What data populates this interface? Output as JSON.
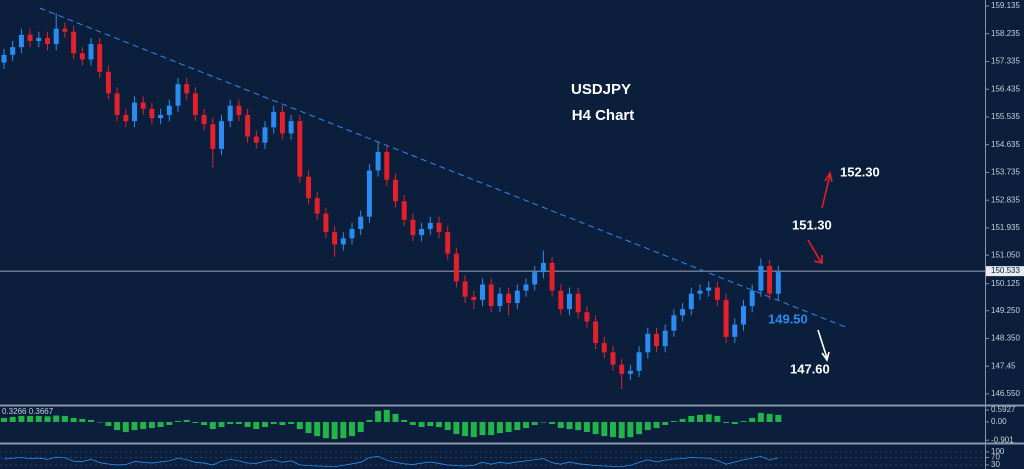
{
  "chart_data": {
    "type": "candlestick",
    "title": "USDJPY",
    "subtitle": "H4 Chart",
    "up_color": "#2a8cf0",
    "down_color": "#e3202c",
    "xlim": [
      -0.46,
      112.76
    ],
    "ylim": [
      146.19,
      159.33
    ],
    "yticks": [
      159.135,
      158.235,
      157.335,
      156.435,
      155.535,
      154.635,
      153.735,
      152.835,
      151.935,
      {
        "value": 151.05,
        "label": "151.050"
      },
      150.125,
      {
        "value": 149.25,
        "label": "149.250"
      },
      {
        "value": 148.35,
        "label": "148.350"
      },
      147.45,
      {
        "value": 146.55,
        "label": "146.550"
      }
    ],
    "last_price": 150.533,
    "open": [
      157.3,
      157.55,
      157.8,
      158.2,
      158.0,
      158.1,
      157.9,
      158.4,
      158.3,
      157.6,
      157.4,
      157.9,
      157.0,
      156.3,
      155.6,
      155.4,
      156.0,
      155.8,
      155.5,
      155.6,
      155.9,
      156.6,
      156.3,
      155.6,
      155.3,
      154.5,
      155.4,
      155.9,
      155.6,
      154.9,
      154.7,
      155.2,
      155.7,
      155.0,
      155.4,
      153.6,
      152.9,
      152.4,
      151.8,
      151.4,
      151.6,
      151.9,
      152.3,
      153.8,
      154.4,
      153.5,
      152.8,
      152.2,
      151.7,
      151.9,
      152.1,
      151.8,
      151.1,
      150.2,
      149.7,
      149.6,
      150.1,
      149.4,
      149.8,
      149.5,
      149.9,
      150.1,
      150.5,
      150.8,
      149.9,
      149.3,
      149.8,
      149.2,
      148.9,
      148.2,
      147.9,
      147.5,
      147.2,
      147.3,
      147.9,
      148.5,
      148.1,
      148.6,
      149.1,
      149.3,
      149.8,
      149.9,
      150.0,
      149.6,
      148.4,
      148.8,
      149.4,
      149.9,
      150.7,
      149.8
    ],
    "high": [
      157.75,
      158.0,
      158.4,
      158.4,
      158.3,
      158.3,
      158.9,
      158.6,
      158.5,
      157.8,
      158.1,
      158.1,
      157.2,
      156.5,
      155.8,
      156.2,
      156.2,
      156.0,
      155.8,
      156.1,
      156.8,
      156.8,
      156.5,
      155.8,
      155.5,
      155.6,
      156.1,
      156.1,
      155.8,
      155.1,
      155.4,
      155.9,
      155.9,
      155.6,
      155.6,
      153.8,
      153.1,
      152.6,
      152.0,
      151.8,
      152.1,
      152.5,
      154.0,
      154.7,
      154.6,
      153.7,
      153.0,
      152.4,
      152.1,
      152.3,
      152.3,
      152.0,
      151.3,
      150.4,
      149.9,
      150.3,
      150.3,
      150.0,
      150.0,
      150.1,
      150.3,
      150.7,
      151.2,
      151.0,
      150.1,
      150.0,
      150.0,
      149.4,
      149.1,
      148.4,
      148.1,
      147.7,
      147.5,
      148.1,
      148.7,
      148.7,
      148.8,
      149.3,
      149.5,
      150.0,
      150.1,
      150.2,
      150.2,
      149.8,
      149.0,
      149.6,
      150.1,
      150.95,
      150.9,
      150.7
    ],
    "low": [
      157.1,
      157.35,
      157.6,
      157.8,
      157.8,
      157.7,
      157.7,
      158.1,
      157.4,
      157.2,
      157.2,
      156.8,
      156.1,
      155.4,
      155.2,
      155.2,
      155.6,
      155.3,
      155.3,
      155.4,
      155.7,
      156.1,
      155.4,
      155.1,
      153.9,
      154.3,
      155.2,
      155.4,
      154.7,
      154.5,
      154.5,
      155.0,
      154.8,
      154.8,
      153.4,
      152.7,
      152.2,
      151.6,
      151.0,
      151.2,
      151.4,
      151.7,
      152.1,
      153.6,
      153.3,
      152.6,
      152.0,
      151.5,
      151.5,
      151.7,
      151.6,
      150.9,
      150.0,
      149.5,
      149.3,
      149.4,
      149.2,
      149.2,
      149.1,
      149.3,
      149.7,
      149.9,
      150.3,
      149.7,
      149.1,
      149.1,
      149.0,
      148.7,
      148.0,
      147.7,
      147.3,
      146.7,
      147.0,
      147.1,
      147.7,
      147.9,
      147.9,
      148.4,
      148.9,
      149.1,
      149.6,
      149.7,
      149.4,
      148.2,
      148.2,
      148.6,
      149.2,
      149.7,
      149.6,
      149.6
    ],
    "close": [
      157.55,
      157.8,
      158.2,
      158.0,
      158.1,
      157.9,
      158.4,
      158.3,
      157.6,
      157.4,
      157.9,
      157.0,
      156.3,
      155.6,
      155.4,
      156.0,
      155.8,
      155.5,
      155.6,
      155.9,
      156.6,
      156.3,
      155.6,
      155.3,
      154.5,
      155.4,
      155.9,
      155.6,
      154.9,
      154.7,
      155.2,
      155.7,
      155.0,
      155.4,
      153.6,
      152.9,
      152.4,
      151.8,
      151.4,
      151.6,
      151.9,
      152.3,
      153.8,
      154.4,
      153.5,
      152.8,
      152.2,
      151.7,
      151.9,
      152.1,
      151.8,
      151.1,
      150.2,
      149.7,
      149.6,
      150.1,
      149.4,
      149.8,
      149.5,
      149.9,
      150.1,
      150.5,
      150.8,
      149.9,
      149.3,
      149.8,
      149.2,
      148.9,
      148.2,
      147.9,
      147.5,
      147.2,
      147.3,
      147.9,
      148.5,
      148.1,
      148.6,
      149.1,
      149.3,
      149.8,
      149.9,
      150.0,
      149.6,
      148.4,
      148.8,
      149.4,
      149.9,
      150.7,
      149.8,
      150.5
    ],
    "trendline": {
      "x": [
        4.1,
        97
      ],
      "y": [
        159.07,
        148.69
      ],
      "color": "#2a8cf0"
    },
    "annotations": [
      {
        "text": "152.30",
        "color": "#ffffff"
      },
      {
        "text": "151.30",
        "color": "#ffffff"
      },
      {
        "text": "149.50",
        "color": "#2a8cf0"
      },
      {
        "text": "147.60",
        "color": "#ffffff"
      }
    ],
    "macd": {
      "label": "0.3266 0.3667",
      "color": "#22b34a",
      "ylim": [
        -1.04,
        0.79
      ],
      "yticks": [
        0.5927,
        {
          "value": 0,
          "label": "0.00"
        },
        -0.901
      ],
      "values": [
        0.2,
        0.25,
        0.3,
        0.3,
        0.3,
        0.28,
        0.32,
        0.3,
        0.2,
        0.15,
        0.1,
        0.0,
        -0.2,
        -0.4,
        -0.5,
        -0.4,
        -0.35,
        -0.3,
        -0.25,
        -0.15,
        0.05,
        0.1,
        -0.05,
        -0.15,
        -0.35,
        -0.25,
        -0.1,
        -0.1,
        -0.25,
        -0.35,
        -0.25,
        -0.1,
        -0.15,
        -0.1,
        -0.35,
        -0.55,
        -0.7,
        -0.8,
        -0.85,
        -0.8,
        -0.7,
        -0.5,
        0.1,
        0.55,
        0.6,
        0.4,
        0.1,
        -0.15,
        -0.25,
        -0.2,
        -0.25,
        -0.4,
        -0.6,
        -0.7,
        -0.75,
        -0.65,
        -0.65,
        -0.55,
        -0.5,
        -0.4,
        -0.3,
        -0.15,
        0.0,
        -0.1,
        -0.3,
        -0.35,
        -0.4,
        -0.5,
        -0.6,
        -0.7,
        -0.75,
        -0.8,
        -0.75,
        -0.6,
        -0.4,
        -0.3,
        -0.15,
        0.05,
        0.15,
        0.3,
        0.35,
        0.38,
        0.3,
        -0.05,
        -0.1,
        0.05,
        0.2,
        0.45,
        0.4,
        0.35
      ]
    },
    "oscillator": {
      "color": "#2a8cf0",
      "ylim": [
        8,
        132
      ],
      "yticks": [
        100,
        70,
        30
      ],
      "values": [
        62,
        66,
        70,
        64,
        67,
        60,
        72,
        68,
        50,
        48,
        60,
        42,
        35,
        30,
        32,
        48,
        44,
        40,
        46,
        52,
        66,
        58,
        44,
        40,
        30,
        50,
        60,
        52,
        40,
        38,
        50,
        58,
        44,
        52,
        30,
        26,
        24,
        22,
        20,
        28,
        36,
        44,
        70,
        76,
        56,
        44,
        36,
        32,
        40,
        46,
        38,
        30,
        26,
        24,
        28,
        44,
        34,
        44,
        38,
        46,
        52,
        58,
        64,
        42,
        34,
        46,
        36,
        32,
        26,
        24,
        22,
        20,
        28,
        44,
        58,
        46,
        56,
        62,
        64,
        70,
        68,
        66,
        54,
        34,
        46,
        58,
        66,
        76,
        56,
        68
      ]
    }
  }
}
